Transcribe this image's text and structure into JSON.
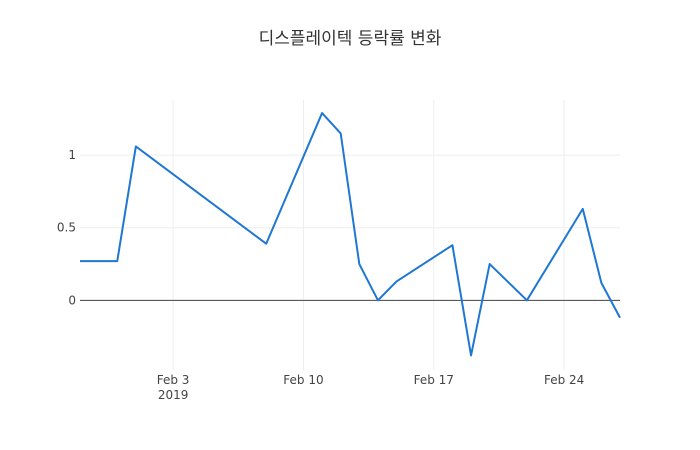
{
  "chart_data": {
    "type": "line",
    "title": "디스플레이텍 등락률 변화",
    "x": [
      "2019-01-29",
      "2019-01-31",
      "2019-02-01",
      "2019-02-08",
      "2019-02-11",
      "2019-02-12",
      "2019-02-13",
      "2019-02-14",
      "2019-02-15",
      "2019-02-18",
      "2019-02-19",
      "2019-02-20",
      "2019-02-22",
      "2019-02-25",
      "2019-02-26",
      "2019-02-27"
    ],
    "series": [
      {
        "color": "#1f77d4",
        "values": [
          0.27,
          0.27,
          1.06,
          0.39,
          1.29,
          1.15,
          0.25,
          0.0,
          0.13,
          0.38,
          -0.38,
          0.25,
          0.0,
          0.63,
          0.12,
          -0.12
        ]
      }
    ],
    "xlim": [
      "2019-01-29",
      "2019-02-27"
    ],
    "xticks": [
      {
        "value": "2019-02-03",
        "label": [
          "Feb 3",
          "2019"
        ]
      },
      {
        "value": "2019-02-10",
        "label": [
          "Feb 10"
        ]
      },
      {
        "value": "2019-02-17",
        "label": [
          "Feb 17"
        ]
      },
      {
        "value": "2019-02-24",
        "label": [
          "Feb 24"
        ]
      }
    ],
    "ylim": [
      -0.48,
      1.38
    ],
    "yticks": [
      0,
      0.5,
      1
    ],
    "grid": true,
    "zeroline": true
  }
}
